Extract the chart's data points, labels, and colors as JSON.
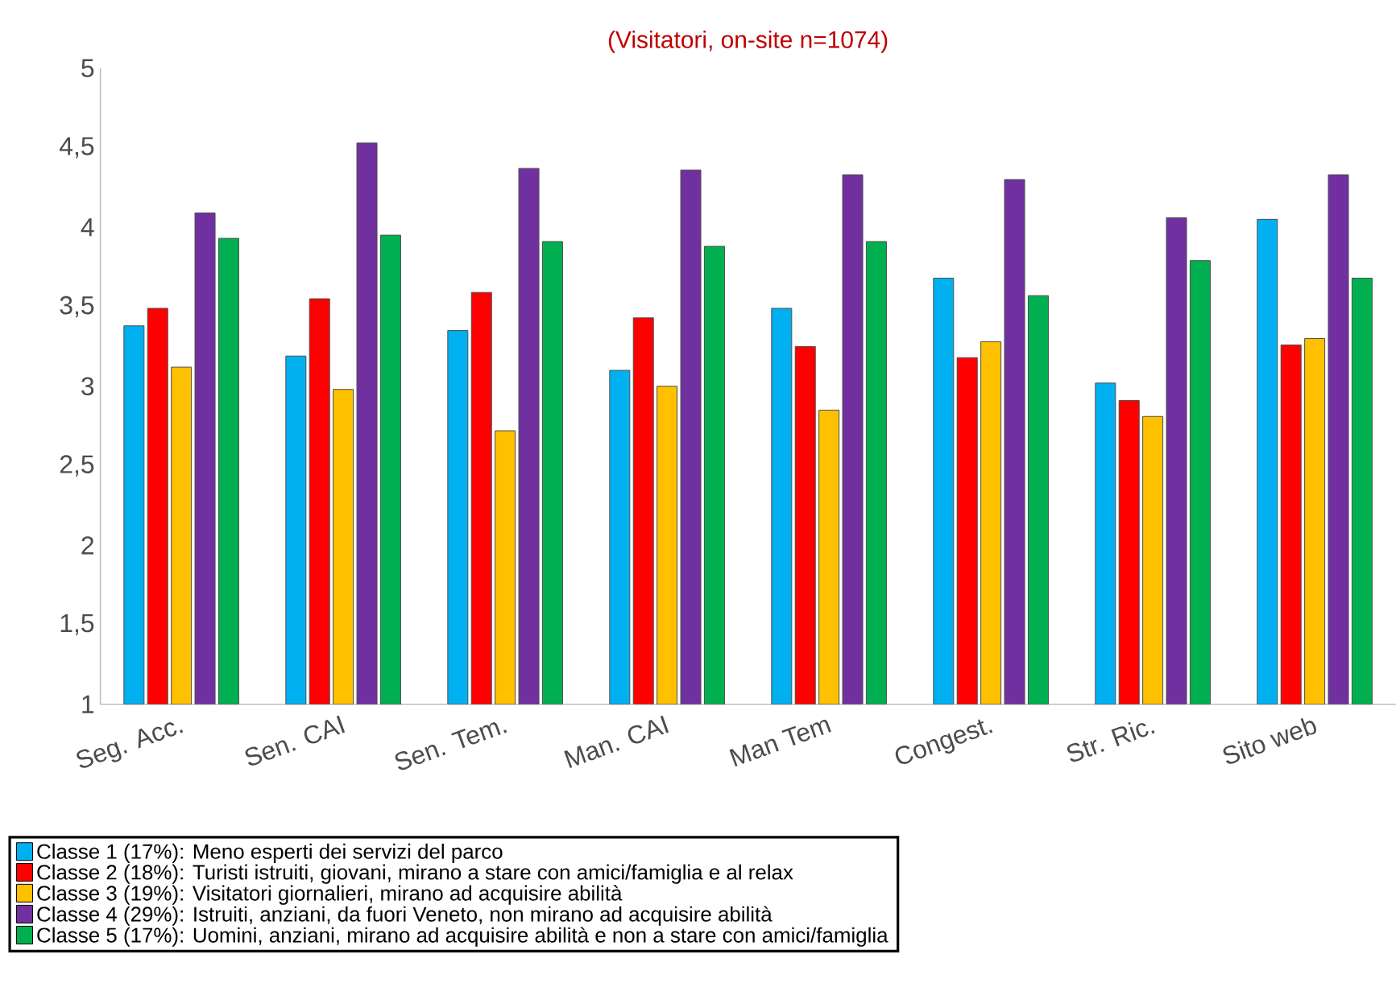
{
  "chart_data": {
    "type": "bar",
    "title": "(Visitatori, on-site n=1074)",
    "categories": [
      "Seg. Acc.",
      "Sen. CAI",
      "Sen. Tem.",
      "Man. CAI",
      "Man Tem",
      "Congest.",
      "Str. Ric.",
      "Sito web"
    ],
    "series": [
      {
        "name": "Classe 1 (17%): Meno esperti dei servizi del parco",
        "color": "#00b0f0",
        "values": [
          3.38,
          3.19,
          3.35,
          3.1,
          3.49,
          3.68,
          3.02,
          4.05
        ]
      },
      {
        "name": "Classe 2 (18%): Turisti istruiti, giovani, mirano a stare con amici/famiglia e al relax",
        "color": "#ff0000",
        "values": [
          3.49,
          3.55,
          3.59,
          3.43,
          3.25,
          3.18,
          2.91,
          3.26
        ]
      },
      {
        "name": "Classe 3 (19%): Visitatori giornalieri, mirano ad acquisire abilità",
        "color": "#ffc000",
        "values": [
          3.12,
          2.98,
          2.72,
          3.0,
          2.85,
          3.28,
          2.81,
          3.3
        ]
      },
      {
        "name": "Classe 4 (29%): Istruiti, anziani, da fuori Veneto, non mirano ad acquisire abilità",
        "color": "#7030a0",
        "values": [
          4.09,
          4.53,
          4.37,
          4.36,
          4.33,
          4.3,
          4.06,
          4.33
        ]
      },
      {
        "name": "Classe 5 (17%): Uomini, anziani, mirano ad acquisire abilità e non a stare con amici/famiglia",
        "color": "#00b050",
        "values": [
          3.93,
          3.95,
          3.91,
          3.88,
          3.91,
          3.57,
          3.79,
          3.68
        ]
      }
    ],
    "ylim": [
      1,
      5
    ],
    "yticks": [
      1,
      {
        "value": 1.5,
        "label": "1,5"
      },
      2,
      {
        "value": 2.5,
        "label": "2,5"
      },
      3,
      {
        "value": 3.5,
        "label": "3,5"
      },
      4,
      {
        "value": 4.5,
        "label": "4,5"
      },
      5
    ],
    "legend": "bottom"
  }
}
